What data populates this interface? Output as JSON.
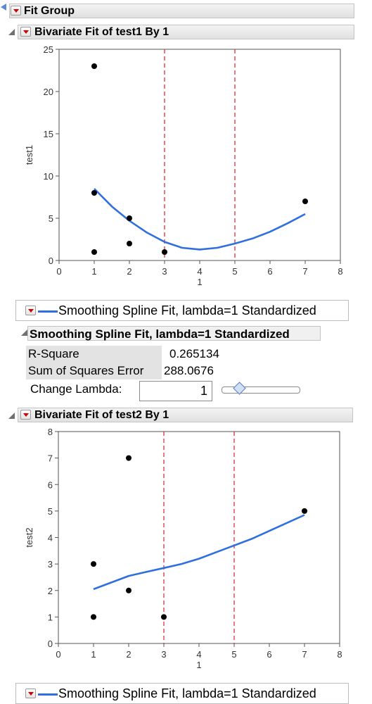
{
  "fit_group": {
    "title": "Fit Group"
  },
  "report1": {
    "title": "Bivariate Fit of test1 By 1",
    "legend_label": "Smoothing Spline Fit, lambda=1 Standardized",
    "spline_report": {
      "title": "Smoothing Spline Fit, lambda=1 Standardized",
      "rows": [
        {
          "label": "R-Square",
          "value": "0.265134"
        },
        {
          "label": "Sum of Squares Error",
          "value": "288.0676"
        }
      ],
      "change_lambda_label": "Change Lambda:",
      "lambda_value": "1"
    }
  },
  "report2": {
    "title": "Bivariate Fit of test2 By 1",
    "legend_label": "Smoothing Spline Fit, lambda=1 Standardized"
  },
  "colors": {
    "spline": "#2f6fe0",
    "reference_line": "#e0303a",
    "points": "#000000",
    "menu_triangle": "#d40000"
  },
  "chart_data": [
    {
      "type": "scatter",
      "xlabel": "1",
      "ylabel": "test1",
      "xlim": [
        0,
        8
      ],
      "ylim": [
        0,
        25
      ],
      "xticks": [
        "0",
        "1",
        "2",
        "3",
        "4",
        "5",
        "6",
        "7",
        "8"
      ],
      "yticks": [
        "0",
        "5",
        "10",
        "15",
        "20",
        "25"
      ],
      "points": [
        [
          1,
          23
        ],
        [
          1,
          8
        ],
        [
          1,
          1
        ],
        [
          2,
          5
        ],
        [
          2,
          2
        ],
        [
          3,
          1
        ],
        [
          7,
          7
        ]
      ],
      "spline": [
        [
          1,
          8.5
        ],
        [
          1.5,
          6.4
        ],
        [
          2,
          4.7
        ],
        [
          2.5,
          3.3
        ],
        [
          3,
          2.2
        ],
        [
          3.5,
          1.5
        ],
        [
          4,
          1.3
        ],
        [
          4.5,
          1.5
        ],
        [
          5,
          2.0
        ],
        [
          5.5,
          2.6
        ],
        [
          6,
          3.4
        ],
        [
          6.5,
          4.4
        ],
        [
          7,
          5.5
        ]
      ],
      "reference_lines_x": [
        3,
        5
      ],
      "grid": false
    },
    {
      "type": "scatter",
      "xlabel": "1",
      "ylabel": "test2",
      "xlim": [
        0,
        8
      ],
      "ylim": [
        0,
        8
      ],
      "xticks": [
        "0",
        "1",
        "2",
        "3",
        "4",
        "5",
        "6",
        "7",
        "8"
      ],
      "yticks": [
        "0",
        "1",
        "2",
        "3",
        "4",
        "5",
        "6",
        "7",
        "8"
      ],
      "points": [
        [
          1,
          3
        ],
        [
          1,
          1
        ],
        [
          2,
          7
        ],
        [
          2,
          2
        ],
        [
          3,
          1
        ],
        [
          7,
          5
        ]
      ],
      "spline": [
        [
          1,
          2.05
        ],
        [
          1.5,
          2.3
        ],
        [
          2,
          2.55
        ],
        [
          2.5,
          2.7
        ],
        [
          3,
          2.85
        ],
        [
          3.5,
          3.0
        ],
        [
          4,
          3.2
        ],
        [
          4.5,
          3.45
        ],
        [
          5,
          3.7
        ],
        [
          5.5,
          3.95
        ],
        [
          6,
          4.25
        ],
        [
          6.5,
          4.55
        ],
        [
          7,
          4.85
        ]
      ],
      "reference_lines_x": [
        3,
        5
      ],
      "grid": false
    }
  ]
}
